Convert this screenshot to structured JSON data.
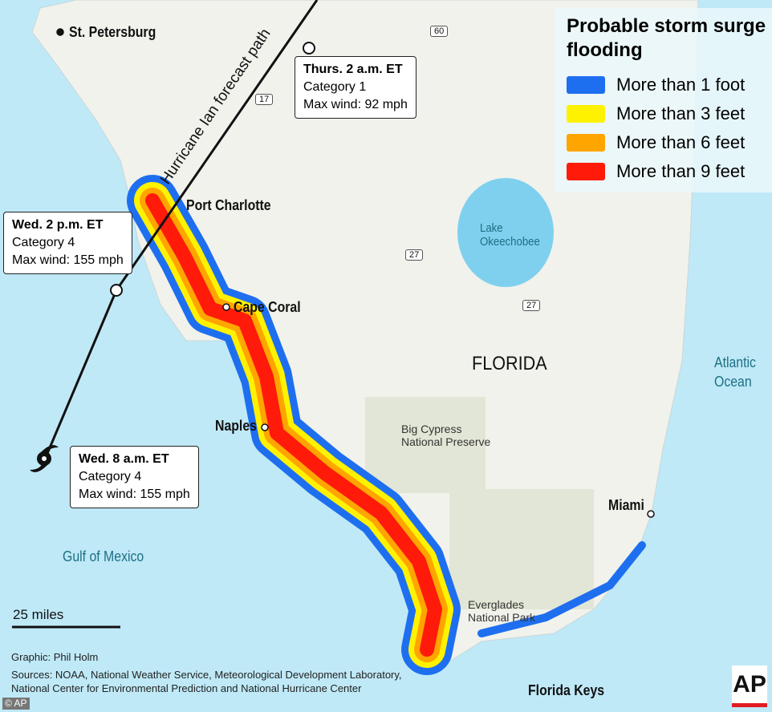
{
  "legend": {
    "title": "Probable storm surge flooding",
    "items": [
      {
        "label": "More than 1 foot",
        "color": "#1e6ff0"
      },
      {
        "label": "More than 3 feet",
        "color": "#fff200"
      },
      {
        "label": "More than 6 feet",
        "color": "#ffa500"
      },
      {
        "label": "More than 9 feet",
        "color": "#ff1a0a"
      }
    ]
  },
  "path_label": "Hurricane Ian forecast path",
  "forecast_points": [
    {
      "time": "Thurs. 2 a.m. ET",
      "category": "Category 1",
      "wind": "Max wind: 92 mph"
    },
    {
      "time": "Wed. 2 p.m. ET",
      "category": "Category 4",
      "wind": "Max wind: 155 mph"
    },
    {
      "time": "Wed. 8 a.m. ET",
      "category": "Category 4",
      "wind": "Max wind: 155 mph"
    }
  ],
  "places": {
    "st_petersburg": "St. Petersburg",
    "port_charlotte": "Port Charlotte",
    "cape_coral": "Cape Coral",
    "naples": "Naples",
    "miami": "Miami",
    "florida_keys": "Florida Keys",
    "florida": "FLORIDA",
    "lake": "Lake Okeechobee",
    "big_cypress": "Big Cypress National Preserve",
    "everglades": "Everglades National Park",
    "gulf": "Gulf of Mexico",
    "atlantic": "Atlantic Ocean"
  },
  "highways": [
    "60",
    "17",
    "27",
    "27"
  ],
  "scale": "25 miles",
  "credits": {
    "graphic": "Graphic: Phil Holm",
    "sources": "Sources: NOAA, National Weather Service, Meteorological Development Laboratory,",
    "sources2": "National Center for Environmental Prediction and National Hurricane Center",
    "copyright": "© AP",
    "logo": "AP"
  },
  "colors": {
    "water": "#bfe9f7",
    "land": "#f1f2ec"
  }
}
